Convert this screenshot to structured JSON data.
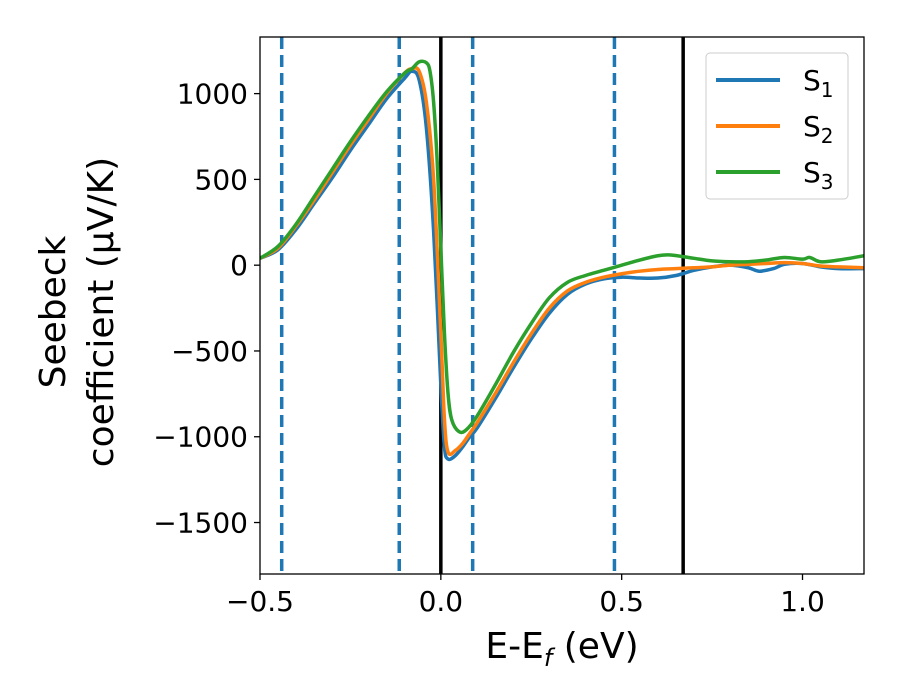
{
  "chart_data": {
    "type": "line",
    "title": "",
    "xlabel": {
      "main": "E-E",
      "sub": "f",
      "tail": " (eV)"
    },
    "ylabel": {
      "line1": "Seebeck",
      "line2": "coefficient  (μV/K)"
    },
    "xlim": [
      -0.5,
      1.17
    ],
    "ylim": [
      -1800,
      1330
    ],
    "xticks": [
      {
        "value": -0.5,
        "label": "−0.5"
      },
      {
        "value": 0.0,
        "label": "0.0"
      },
      {
        "value": 0.5,
        "label": "0.5"
      },
      {
        "value": 1.0,
        "label": "1.0"
      }
    ],
    "yticks": [
      {
        "value": 1000,
        "label": "1000"
      },
      {
        "value": 500,
        "label": "500"
      },
      {
        "value": 0,
        "label": "0"
      },
      {
        "value": -500,
        "label": "−500"
      },
      {
        "value": -1000,
        "label": "−1000"
      },
      {
        "value": -1500,
        "label": "−1500"
      }
    ],
    "grid": false,
    "legend_position": "top-right",
    "vlines": [
      {
        "x": -0.44,
        "style": "dashed",
        "color": "#1f77b4"
      },
      {
        "x": -0.115,
        "style": "dashed",
        "color": "#1f77b4"
      },
      {
        "x": 0.0,
        "style": "solid",
        "color": "#000000"
      },
      {
        "x": 0.088,
        "style": "dashed",
        "color": "#1f77b4"
      },
      {
        "x": 0.48,
        "style": "dashed",
        "color": "#1f77b4"
      },
      {
        "x": 0.67,
        "style": "solid",
        "color": "#000000"
      }
    ],
    "series": [
      {
        "name": "S",
        "sub": "1",
        "color": "#1f77b4",
        "points": [
          [
            -0.5,
            40
          ],
          [
            -0.45,
            90
          ],
          [
            -0.4,
            210
          ],
          [
            -0.35,
            360
          ],
          [
            -0.3,
            510
          ],
          [
            -0.25,
            670
          ],
          [
            -0.2,
            820
          ],
          [
            -0.15,
            970
          ],
          [
            -0.1,
            1090
          ],
          [
            -0.08,
            1130
          ],
          [
            -0.06,
            1080
          ],
          [
            -0.04,
            800
          ],
          [
            -0.02,
            200
          ],
          [
            0.0,
            -700
          ],
          [
            0.01,
            -1060
          ],
          [
            0.02,
            -1130
          ],
          [
            0.04,
            -1110
          ],
          [
            0.06,
            -1060
          ],
          [
            0.08,
            -1000
          ],
          [
            0.1,
            -950
          ],
          [
            0.15,
            -780
          ],
          [
            0.2,
            -600
          ],
          [
            0.25,
            -430
          ],
          [
            0.3,
            -280
          ],
          [
            0.35,
            -170
          ],
          [
            0.4,
            -110
          ],
          [
            0.45,
            -80
          ],
          [
            0.5,
            -70
          ],
          [
            0.55,
            -75
          ],
          [
            0.6,
            -75
          ],
          [
            0.65,
            -60
          ],
          [
            0.7,
            -30
          ],
          [
            0.75,
            -10
          ],
          [
            0.8,
            0
          ],
          [
            0.85,
            -15
          ],
          [
            0.88,
            -35
          ],
          [
            0.92,
            -20
          ],
          [
            0.95,
            5
          ],
          [
            1.0,
            10
          ],
          [
            1.05,
            -10
          ],
          [
            1.1,
            -20
          ],
          [
            1.17,
            -20
          ]
        ]
      },
      {
        "name": "S",
        "sub": "2",
        "color": "#ff7f0e",
        "points": [
          [
            -0.5,
            40
          ],
          [
            -0.45,
            100
          ],
          [
            -0.4,
            230
          ],
          [
            -0.35,
            380
          ],
          [
            -0.3,
            540
          ],
          [
            -0.25,
            700
          ],
          [
            -0.2,
            850
          ],
          [
            -0.15,
            1000
          ],
          [
            -0.1,
            1120
          ],
          [
            -0.08,
            1145
          ],
          [
            -0.06,
            1130
          ],
          [
            -0.04,
            950
          ],
          [
            -0.02,
            500
          ],
          [
            0.0,
            -400
          ],
          [
            0.01,
            -900
          ],
          [
            0.02,
            -1090
          ],
          [
            0.04,
            -1080
          ],
          [
            0.06,
            -1040
          ],
          [
            0.08,
            -980
          ],
          [
            0.1,
            -920
          ],
          [
            0.15,
            -750
          ],
          [
            0.2,
            -570
          ],
          [
            0.25,
            -400
          ],
          [
            0.3,
            -250
          ],
          [
            0.35,
            -150
          ],
          [
            0.4,
            -100
          ],
          [
            0.45,
            -70
          ],
          [
            0.5,
            -50
          ],
          [
            0.55,
            -35
          ],
          [
            0.6,
            -25
          ],
          [
            0.65,
            -20
          ],
          [
            0.7,
            -15
          ],
          [
            0.75,
            -10
          ],
          [
            0.8,
            0
          ],
          [
            0.85,
            5
          ],
          [
            0.9,
            10
          ],
          [
            0.95,
            15
          ],
          [
            1.0,
            10
          ],
          [
            1.05,
            -5
          ],
          [
            1.1,
            -10
          ],
          [
            1.17,
            -15
          ]
        ]
      },
      {
        "name": "S",
        "sub": "3",
        "color": "#2ca02c",
        "points": [
          [
            -0.5,
            40
          ],
          [
            -0.45,
            110
          ],
          [
            -0.4,
            240
          ],
          [
            -0.35,
            400
          ],
          [
            -0.3,
            560
          ],
          [
            -0.25,
            720
          ],
          [
            -0.2,
            870
          ],
          [
            -0.15,
            1010
          ],
          [
            -0.1,
            1120
          ],
          [
            -0.08,
            1145
          ],
          [
            -0.06,
            1185
          ],
          [
            -0.04,
            1180
          ],
          [
            -0.03,
            1130
          ],
          [
            -0.02,
            950
          ],
          [
            -0.01,
            600
          ],
          [
            0.0,
            100
          ],
          [
            0.01,
            -400
          ],
          [
            0.02,
            -750
          ],
          [
            0.03,
            -900
          ],
          [
            0.05,
            -970
          ],
          [
            0.07,
            -960
          ],
          [
            0.1,
            -880
          ],
          [
            0.15,
            -700
          ],
          [
            0.2,
            -510
          ],
          [
            0.25,
            -340
          ],
          [
            0.3,
            -190
          ],
          [
            0.35,
            -100
          ],
          [
            0.4,
            -60
          ],
          [
            0.45,
            -30
          ],
          [
            0.5,
            0
          ],
          [
            0.55,
            30
          ],
          [
            0.6,
            55
          ],
          [
            0.63,
            60
          ],
          [
            0.67,
            50
          ],
          [
            0.7,
            40
          ],
          [
            0.75,
            25
          ],
          [
            0.8,
            20
          ],
          [
            0.85,
            20
          ],
          [
            0.9,
            30
          ],
          [
            0.95,
            45
          ],
          [
            1.0,
            35
          ],
          [
            1.02,
            45
          ],
          [
            1.05,
            20
          ],
          [
            1.1,
            30
          ],
          [
            1.17,
            55
          ]
        ]
      }
    ]
  }
}
